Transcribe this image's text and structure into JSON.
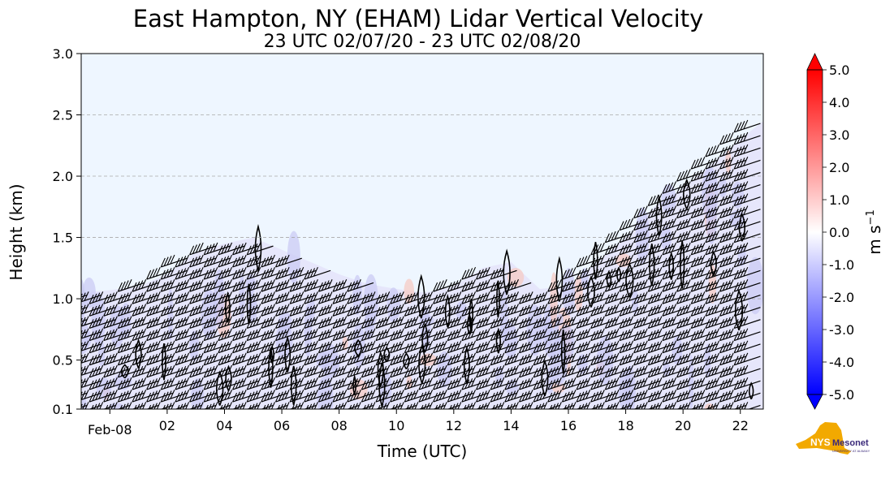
{
  "chart_data": {
    "type": "heatmap",
    "title": "East Hampton, NY (EHAM) Lidar Vertical Velocity",
    "subtitle": "23 UTC 02/07/20 - 23 UTC 02/08/20",
    "xlabel": "Time (UTC)",
    "ylabel": "Height (km)",
    "x_ticks": [
      "Feb-08",
      "02",
      "04",
      "06",
      "08",
      "10",
      "12",
      "14",
      "16",
      "18",
      "20",
      "22"
    ],
    "x_tick_hours": [
      0,
      2,
      4,
      6,
      8,
      10,
      12,
      14,
      16,
      18,
      20,
      22
    ],
    "xlim_hours": [
      -1,
      22.8
    ],
    "y_ticks": [
      "0.1",
      "0.5",
      "1.0",
      "1.5",
      "2.0",
      "2.5",
      "3.0"
    ],
    "y_tick_values": [
      0.1,
      0.5,
      1.0,
      1.5,
      2.0,
      2.5,
      3.0
    ],
    "ylim": [
      0.1,
      3.0
    ],
    "grid": "horizontal dashed at 1.0, 1.5, 2.0, 2.5",
    "colorbar": {
      "label": "m s",
      "label_exponent": "−1",
      "ticks": [
        "5.0",
        "4.0",
        "3.0",
        "2.0",
        "1.0",
        "0.0",
        "-1.0",
        "-2.0",
        "-3.0",
        "-4.0",
        "-5.0"
      ],
      "range": [
        -5.0,
        5.0
      ],
      "colormap": "bwr",
      "colors": {
        "min": "#0000ff",
        "mid": "#ffffff",
        "max": "#ff0000"
      }
    },
    "background_color": "#eef6ff",
    "data_top_km": [
      [
        -1,
        1.05
      ],
      [
        0,
        1.07
      ],
      [
        1,
        1.1
      ],
      [
        2,
        1.2
      ],
      [
        3,
        1.38
      ],
      [
        4,
        1.45
      ],
      [
        5,
        1.5
      ],
      [
        6,
        1.4
      ],
      [
        7,
        1.3
      ],
      [
        8,
        1.2
      ],
      [
        9,
        1.12
      ],
      [
        10,
        1.08
      ],
      [
        11,
        1.05
      ],
      [
        12,
        1.1
      ],
      [
        13,
        1.25
      ],
      [
        14,
        1.3
      ],
      [
        15,
        1.08
      ],
      [
        16,
        1.1
      ],
      [
        17,
        1.3
      ],
      [
        18,
        1.5
      ],
      [
        19,
        1.75
      ],
      [
        20,
        1.9
      ],
      [
        21,
        2.1
      ],
      [
        22,
        2.3
      ],
      [
        22.8,
        2.45
      ]
    ],
    "overlay": "wind barbs and vertical velocity contours"
  },
  "logo": {
    "name": "NYS Mesonet",
    "text": "NYS",
    "text2": "Mesonet",
    "subtext": "UNIVERSITY AT ALBANY",
    "colors": {
      "state": "#f2a900",
      "text": "#3b2a7a"
    }
  }
}
